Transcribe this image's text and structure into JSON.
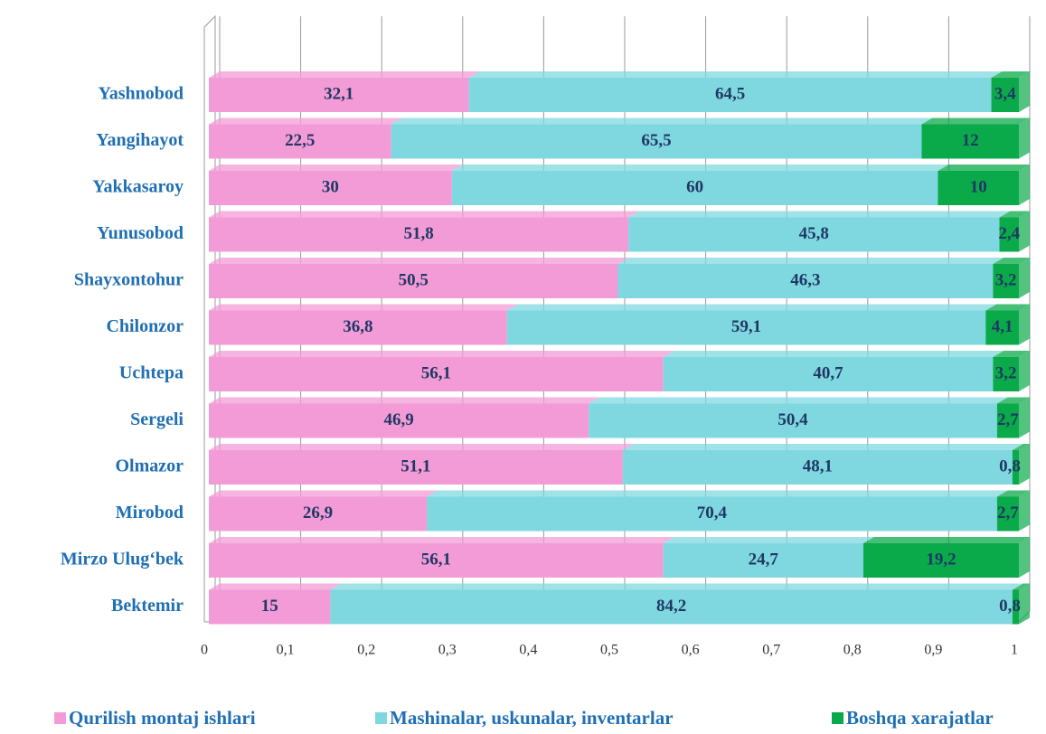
{
  "chart_data": {
    "type": "stacked_bar_horizontal",
    "categories": [
      "Yashnobod",
      "Yangihayot",
      "Yakkasaroy",
      "Yunusobod",
      "Shayxontohur",
      "Chilonzor",
      "Uchtepa",
      "Sergeli",
      "Olmazor",
      "Mirobod",
      "Mirzo Ulug‘bek",
      "Bektemir"
    ],
    "series": [
      {
        "name": "Qurilish montaj ishlari",
        "color": "#f39bd6",
        "values": [
          0.321,
          0.225,
          0.3,
          0.518,
          0.505,
          0.368,
          0.561,
          0.469,
          0.511,
          0.269,
          0.561,
          0.15
        ],
        "value_labels": [
          "32,1",
          "22,5",
          "30",
          "51,8",
          "50,5",
          "36,8",
          "56,1",
          "46,9",
          "51,1",
          "26,9",
          "56,1",
          "15"
        ]
      },
      {
        "name": "Mashinalar, uskunalar, inventarlar",
        "color": "#7fd8e0",
        "values": [
          0.645,
          0.655,
          0.6,
          0.458,
          0.463,
          0.591,
          0.407,
          0.504,
          0.481,
          0.704,
          0.247,
          0.842
        ],
        "value_labels": [
          "64,5",
          "65,5",
          "60",
          "45,8",
          "46,3",
          "59,1",
          "40,7",
          "50,4",
          "48,1",
          "70,4",
          "24,7",
          "84,2"
        ]
      },
      {
        "name": "Boshqa xarajatlar",
        "color": "#0aaa4a",
        "values": [
          0.034,
          0.12,
          0.1,
          0.024,
          0.032,
          0.041,
          0.032,
          0.027,
          0.008,
          0.027,
          0.192,
          0.008
        ],
        "value_labels": [
          "3,4",
          "12",
          "10",
          "2,4",
          "3,2",
          "4,1",
          "3,2",
          "2,7",
          "0,8",
          "2,7",
          "19,2",
          "0,8"
        ]
      }
    ],
    "xlim": [
      0,
      1
    ],
    "xticks": [
      0,
      {
        "value": 0.1,
        "label": "0,1"
      },
      {
        "value": 0.2,
        "label": "0,2"
      },
      {
        "value": 0.3,
        "label": "0,3"
      },
      {
        "value": 0.4,
        "label": "0,4"
      },
      {
        "value": 0.5,
        "label": "0,5"
      },
      {
        "value": 0.6,
        "label": "0,6"
      },
      {
        "value": 0.7,
        "label": "0,7"
      },
      {
        "value": 0.8,
        "label": "0,8"
      },
      {
        "value": 0.9,
        "label": "0,9"
      },
      1
    ],
    "grid": true,
    "legend": "bottom"
  }
}
